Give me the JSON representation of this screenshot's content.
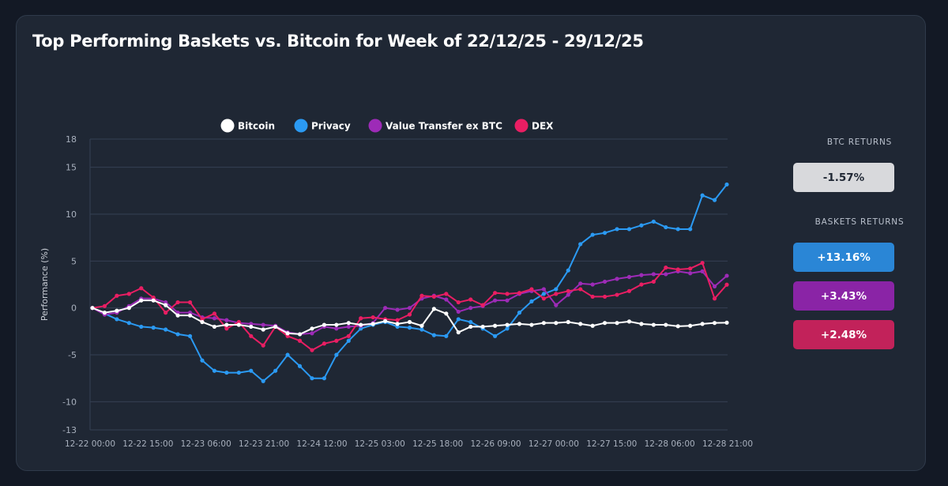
{
  "title": "Top Performing Baskets vs. Bitcoin for Week of 22/12/25 - 29/12/25",
  "btc_returns_label": "BTC RETURNS",
  "btc_return": "-1.57%",
  "baskets_returns_label": "BASKETS RETURNS",
  "basket_returns": [
    {
      "name": "Privacy",
      "value": "+13.16%",
      "color": "#2a86d6"
    },
    {
      "name": "Value Transfer ex BTC",
      "value": "+3.43%",
      "color": "#8a24a6"
    },
    {
      "name": "DEX",
      "value": "+2.48%",
      "color": "#c2225a"
    }
  ],
  "btc_return_box_color": "#d8d9dc",
  "chart_data": {
    "type": "line",
    "ylabel": "Performance (%)",
    "xlabel": "",
    "ylim": [
      -13,
      18
    ],
    "yticks": [
      18,
      15,
      10,
      5,
      0,
      -5,
      -10,
      -13
    ],
    "xlim": [
      "12-22 00:00",
      "12-28 21:00"
    ],
    "xticks": [
      "12-22 00:00",
      "12-22 15:00",
      "12-23 06:00",
      "12-23 21:00",
      "12-24 12:00",
      "12-25 03:00",
      "12-25 18:00",
      "12-26 09:00",
      "12-27 00:00",
      "12-27 15:00",
      "12-28 06:00",
      "12-28 21:00"
    ],
    "grid": true,
    "legend_position": "top-center",
    "x_interval_hours": 6,
    "series": [
      {
        "name": "Bitcoin",
        "color": "#ffffff",
        "values": [
          0.0,
          -0.5,
          -0.3,
          0.0,
          0.8,
          0.8,
          0.3,
          -0.8,
          -0.8,
          -1.5,
          -2.0,
          -1.8,
          -1.8,
          -2.0,
          -2.3,
          -2.0,
          -2.7,
          -2.8,
          -2.2,
          -1.8,
          -1.8,
          -1.6,
          -1.8,
          -1.7,
          -1.4,
          -1.7,
          -1.5,
          -1.9,
          -0.1,
          -0.6,
          -2.6,
          -2.0,
          -2.0,
          -1.9,
          -1.8,
          -1.7,
          -1.8,
          -1.6,
          -1.6,
          -1.5,
          -1.7,
          -1.9,
          -1.6,
          -1.6,
          -1.45,
          -1.7,
          -1.8,
          -1.8,
          -1.95,
          -1.9,
          -1.7,
          -1.6,
          -1.57
        ]
      },
      {
        "name": "Privacy",
        "color": "#2b9af3",
        "values": [
          0.0,
          -0.6,
          -1.2,
          -1.6,
          -2.0,
          -2.1,
          -2.3,
          -2.8,
          -3.0,
          -5.6,
          -6.7,
          -6.9,
          -6.9,
          -6.7,
          -7.8,
          -6.7,
          -5.0,
          -6.2,
          -7.5,
          -7.5,
          -5.0,
          -3.5,
          -2.2,
          -1.8,
          -1.5,
          -2.0,
          -2.1,
          -2.3,
          -2.9,
          -3.0,
          -1.2,
          -1.5,
          -2.2,
          -3.0,
          -2.2,
          -0.5,
          0.7,
          1.5,
          2.0,
          4.0,
          6.8,
          7.8,
          8.0,
          8.4,
          8.4,
          8.8,
          9.2,
          8.6,
          8.4,
          8.4,
          12.0,
          11.5,
          13.16
        ]
      },
      {
        "name": "Value Transfer ex BTC",
        "color": "#9d2bb7",
        "values": [
          0.0,
          -0.7,
          -0.5,
          0.2,
          1.0,
          1.0,
          0.6,
          -0.5,
          -0.5,
          -1.0,
          -1.1,
          -1.3,
          -1.6,
          -1.7,
          -1.8,
          -1.9,
          -2.6,
          -2.8,
          -2.7,
          -2.0,
          -2.2,
          -2.0,
          -1.9,
          -1.6,
          0.0,
          -0.2,
          0.0,
          1.0,
          1.3,
          0.9,
          -0.4,
          0.0,
          0.2,
          0.8,
          0.8,
          1.5,
          1.8,
          2.0,
          0.3,
          1.4,
          2.6,
          2.5,
          2.8,
          3.1,
          3.3,
          3.5,
          3.6,
          3.6,
          3.9,
          3.7,
          3.9,
          2.3,
          3.43
        ]
      },
      {
        "name": "DEX",
        "color": "#e91e63",
        "values": [
          0.0,
          0.2,
          1.3,
          1.5,
          2.1,
          1.1,
          -0.5,
          0.6,
          0.6,
          -1.2,
          -0.6,
          -2.2,
          -1.5,
          -3.0,
          -4.0,
          -2.0,
          -3.0,
          -3.5,
          -4.5,
          -3.8,
          -3.5,
          -3.0,
          -1.1,
          -1.0,
          -1.2,
          -1.3,
          -0.7,
          1.3,
          1.2,
          1.5,
          0.6,
          0.9,
          0.3,
          1.6,
          1.5,
          1.6,
          2.0,
          1.0,
          1.5,
          1.8,
          2.0,
          1.2,
          1.2,
          1.4,
          1.8,
          2.5,
          2.8,
          4.3,
          4.1,
          4.2,
          4.8,
          1.0,
          2.48
        ]
      }
    ]
  }
}
